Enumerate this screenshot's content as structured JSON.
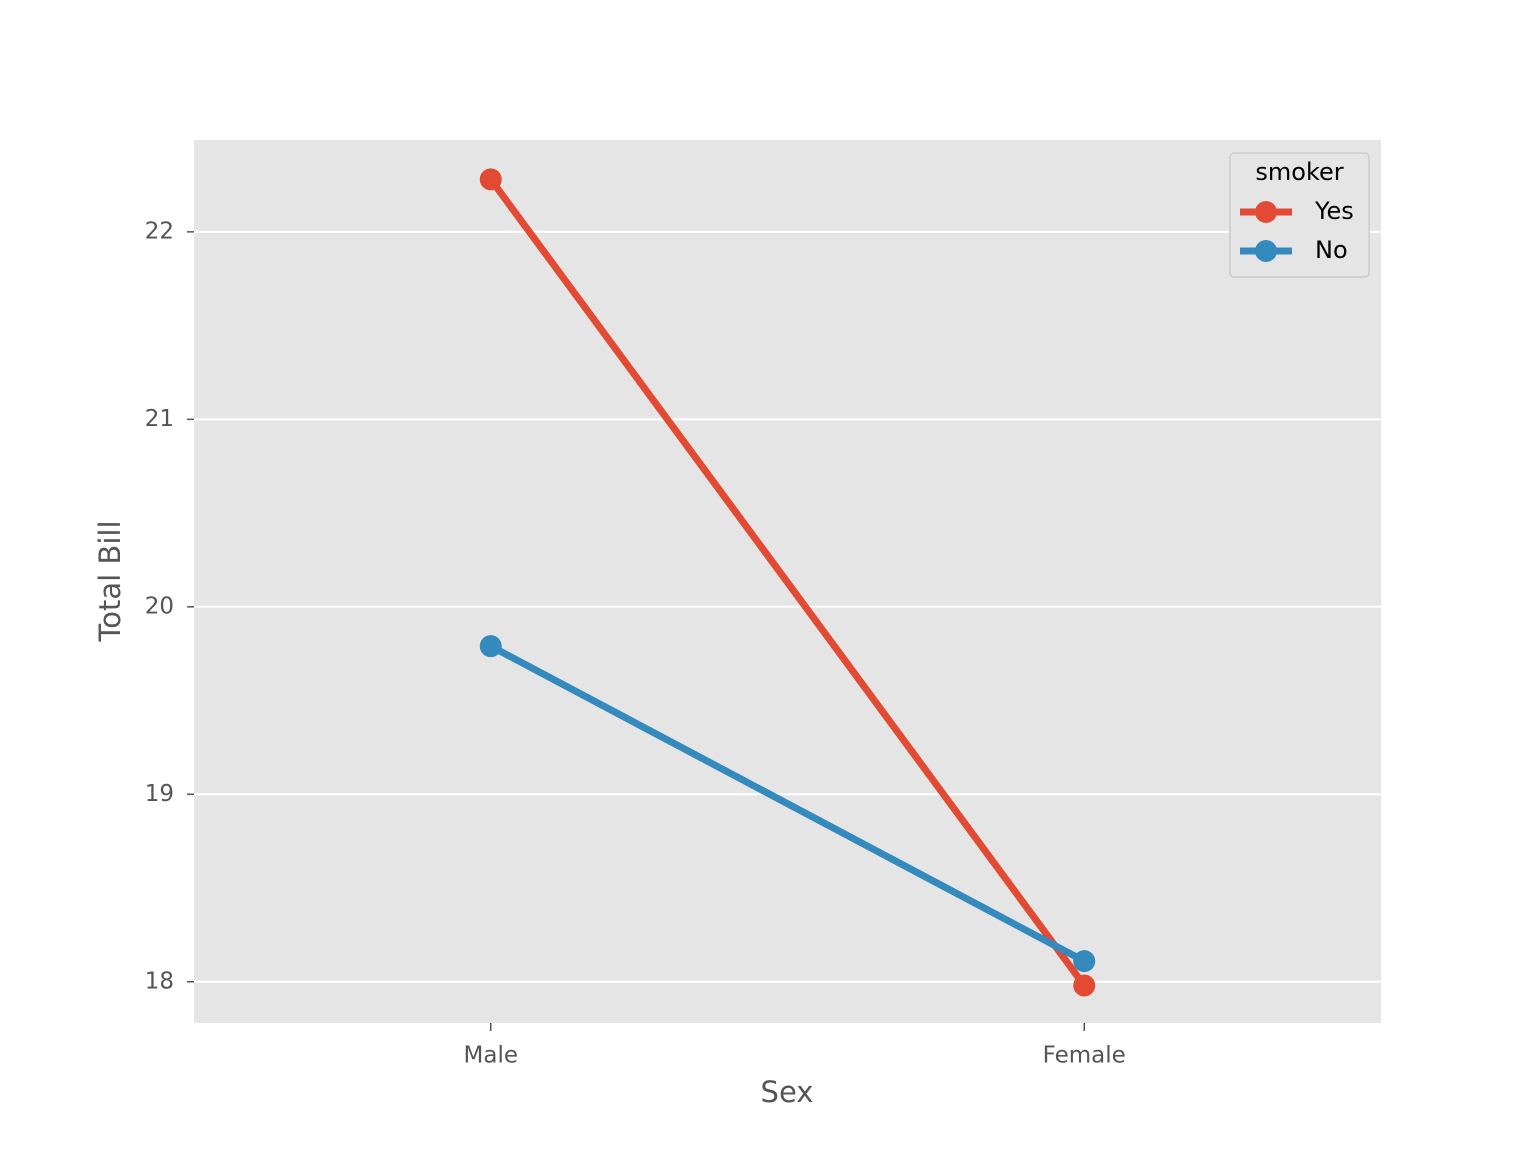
{
  "chart_data": {
    "type": "line",
    "x_label": "Sex",
    "y_label": "Total Bill",
    "categories": [
      "Male",
      "Female"
    ],
    "series": [
      {
        "name": "Yes",
        "color": "#E24A33",
        "values": [
          22.28,
          17.98
        ]
      },
      {
        "name": "No",
        "color": "#348ABD",
        "values": [
          19.79,
          18.11
        ]
      }
    ],
    "ylim": [
      17.78,
      22.49
    ],
    "yticks": [
      18,
      19,
      20,
      21,
      22
    ],
    "grid": true,
    "legend_title": "smoker",
    "legend_position": "upper-right"
  }
}
